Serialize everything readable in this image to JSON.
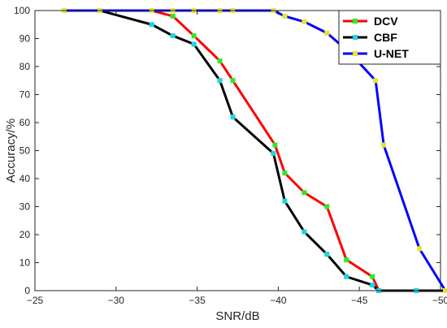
{
  "chart_data": {
    "type": "line",
    "xlabel": "SNR/dB",
    "ylabel": "Accuracy/%",
    "xlim": [
      -25,
      -50
    ],
    "ylim": [
      0,
      100
    ],
    "x_axis_reversed": true,
    "x_ticks": [
      -25,
      -30,
      -35,
      -40,
      -45,
      -50
    ],
    "y_ticks": [
      0,
      10,
      20,
      30,
      40,
      50,
      60,
      70,
      80,
      90,
      100
    ],
    "grid": false,
    "legend_position": "top-right",
    "series": [
      {
        "name": "DCV",
        "color": "#ff0000",
        "marker_color": "#2ee82e",
        "points": [
          [
            -26.8,
            100
          ],
          [
            -29,
            100
          ],
          [
            -32.2,
            100
          ],
          [
            -33.5,
            98
          ],
          [
            -34.8,
            91
          ],
          [
            -36.4,
            82
          ],
          [
            -37.2,
            75
          ],
          [
            -39.8,
            52
          ],
          [
            -40.4,
            42
          ],
          [
            -41.6,
            35
          ],
          [
            -43,
            30
          ],
          [
            -44.2,
            11
          ],
          [
            -45.8,
            5
          ],
          [
            -46.2,
            0
          ],
          [
            -48.5,
            0
          ],
          [
            -50.3,
            0
          ]
        ]
      },
      {
        "name": "CBF",
        "color": "#000000",
        "marker_color": "#1fd3e0",
        "points": [
          [
            -26.8,
            100
          ],
          [
            -29,
            100
          ],
          [
            -32.2,
            95
          ],
          [
            -33.5,
            91
          ],
          [
            -34.8,
            88
          ],
          [
            -36.4,
            75
          ],
          [
            -37.2,
            62
          ],
          [
            -39.7,
            49
          ],
          [
            -40.4,
            32
          ],
          [
            -41.6,
            21
          ],
          [
            -43,
            13
          ],
          [
            -44.2,
            5
          ],
          [
            -45.8,
            2
          ],
          [
            -46.2,
            0
          ],
          [
            -48.5,
            0
          ],
          [
            -50.3,
            0
          ]
        ]
      },
      {
        "name": "U-NET",
        "color": "#0000ff",
        "marker_color": "#e6e62e",
        "points": [
          [
            -26.8,
            100
          ],
          [
            -29,
            100
          ],
          [
            -32.2,
            100
          ],
          [
            -33.5,
            100
          ],
          [
            -34.8,
            100
          ],
          [
            -36.4,
            100
          ],
          [
            -37.2,
            100
          ],
          [
            -39.7,
            100
          ],
          [
            -40.4,
            98
          ],
          [
            -41.6,
            96
          ],
          [
            -43,
            92
          ],
          [
            -44.4,
            85
          ],
          [
            -46,
            75
          ],
          [
            -46.5,
            52
          ],
          [
            -48.7,
            15
          ],
          [
            -50.3,
            0
          ]
        ]
      }
    ]
  }
}
